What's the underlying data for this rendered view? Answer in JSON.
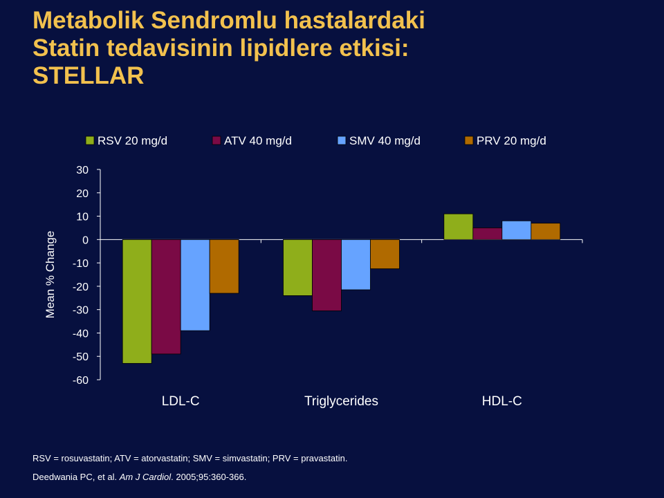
{
  "slide": {
    "title_lines": [
      "Metabolik Sendromlu hastalardaki",
      "Statin tedavisinin lipidlere etkisi:",
      "STELLAR"
    ],
    "footnote_abbrev": "RSV = rosuvastatin; ATV = atorvastatin; SMV = simvastatin; PRV = pravastatin.",
    "citation": {
      "authors": "Deedwania PC, et al. ",
      "journal": "Am J Cardiol",
      "details": ". 2005;95:360-366."
    }
  },
  "colors": {
    "background": "#07103f",
    "title": "#f2c14e",
    "text": "#ffffff"
  },
  "chart_data": {
    "type": "bar",
    "ylabel": "Mean % Change",
    "xlabel": "",
    "ylim": [
      -60,
      30
    ],
    "yticks": [
      30,
      20,
      10,
      0,
      -10,
      -20,
      -30,
      -40,
      -50,
      -60
    ],
    "categories": [
      "LDL-C",
      "Triglycerides",
      "HDL-C"
    ],
    "legend_position": "top",
    "series": [
      {
        "name": "RSV 20 mg/d",
        "color": "#8fae1b",
        "values": [
          -53,
          -24,
          11
        ]
      },
      {
        "name": "ATV 40 mg/d",
        "color": "#7a0a45",
        "values": [
          -49,
          -30.5,
          5
        ]
      },
      {
        "name": "SMV 40 mg/d",
        "color": "#66a3ff",
        "values": [
          -39,
          -21.5,
          8
        ]
      },
      {
        "name": "PRV 20 mg/d",
        "color": "#b06a00",
        "values": [
          -23,
          -12.5,
          7
        ]
      }
    ]
  }
}
